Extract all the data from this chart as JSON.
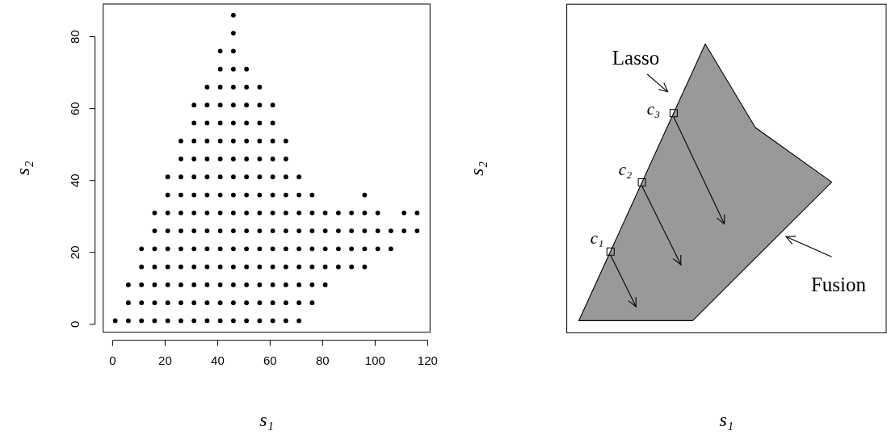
{
  "chart_data": [
    {
      "type": "scatter",
      "xlabel": "s₁",
      "ylabel": "s₂",
      "xlim": [
        -3.6,
        120.9
      ],
      "ylim": [
        -2.2,
        89.1
      ],
      "xticks": [
        0,
        20,
        40,
        60,
        80,
        100,
        120
      ],
      "yticks": [
        0,
        20,
        40,
        60,
        80
      ],
      "marker": "circle",
      "series": [
        {
          "color": "#000000",
          "x": [
            1,
            6,
            11,
            16,
            21,
            26,
            31,
            36,
            41,
            46,
            51,
            56,
            61,
            66,
            71
          ],
          "values": [
            1,
            1,
            1,
            1,
            1,
            1,
            1,
            1,
            1,
            1,
            1,
            1,
            1,
            1,
            1
          ]
        },
        {
          "color": "#000000",
          "x": [
            6,
            11,
            16,
            21,
            26,
            31,
            36,
            41,
            46,
            51,
            56,
            61,
            66,
            71,
            76
          ],
          "values": [
            6,
            6,
            6,
            6,
            6,
            6,
            6,
            6,
            6,
            6,
            6,
            6,
            6,
            6,
            6
          ]
        },
        {
          "color": "#000000",
          "x": [
            6,
            11,
            16,
            21,
            26,
            31,
            36,
            41,
            46,
            51,
            56,
            61,
            66,
            71,
            76,
            81
          ],
          "values": [
            11,
            11,
            11,
            11,
            11,
            11,
            11,
            11,
            11,
            11,
            11,
            11,
            11,
            11,
            11,
            11
          ]
        },
        {
          "color": "#000000",
          "x": [
            11,
            16,
            21,
            26,
            31,
            36,
            41,
            46,
            51,
            56,
            61,
            66,
            71,
            76,
            81,
            86,
            91,
            96
          ],
          "values": [
            16,
            16,
            16,
            16,
            16,
            16,
            16,
            16,
            16,
            16,
            16,
            16,
            16,
            16,
            16,
            16,
            16,
            16
          ]
        },
        {
          "color": "#000000",
          "x": [
            11,
            16,
            21,
            26,
            31,
            36,
            41,
            46,
            51,
            56,
            61,
            66,
            71,
            76,
            81,
            86,
            91,
            96,
            101,
            106
          ],
          "values": [
            21,
            21,
            21,
            21,
            21,
            21,
            21,
            21,
            21,
            21,
            21,
            21,
            21,
            21,
            21,
            21,
            21,
            21,
            21,
            21
          ]
        },
        {
          "color": "#000000",
          "x": [
            16,
            21,
            26,
            31,
            36,
            41,
            46,
            51,
            56,
            61,
            66,
            71,
            76,
            81,
            86,
            91,
            96,
            101,
            106,
            111,
            116
          ],
          "values": [
            26,
            26,
            26,
            26,
            26,
            26,
            26,
            26,
            26,
            26,
            26,
            26,
            26,
            26,
            26,
            26,
            26,
            26,
            26,
            26,
            26
          ]
        },
        {
          "color": "#000000",
          "x": [
            16,
            21,
            26,
            31,
            36,
            41,
            46,
            51,
            56,
            61,
            66,
            71,
            76,
            81,
            86,
            91,
            96,
            101,
            111,
            116
          ],
          "values": [
            31,
            31,
            31,
            31,
            31,
            31,
            31,
            31,
            31,
            31,
            31,
            31,
            31,
            31,
            31,
            31,
            31,
            31,
            31,
            31
          ]
        },
        {
          "color": "#000000",
          "x": [
            21,
            26,
            31,
            36,
            41,
            46,
            51,
            56,
            61,
            66,
            71,
            76,
            96
          ],
          "values": [
            36,
            36,
            36,
            36,
            36,
            36,
            36,
            36,
            36,
            36,
            36,
            36,
            36
          ]
        },
        {
          "color": "#000000",
          "x": [
            21,
            26,
            31,
            36,
            41,
            46,
            51,
            56,
            61,
            66,
            71
          ],
          "values": [
            41,
            41,
            41,
            41,
            41,
            41,
            41,
            41,
            41,
            41,
            41
          ]
        },
        {
          "color": "#000000",
          "x": [
            26,
            31,
            36,
            41,
            46,
            51,
            56,
            61,
            66
          ],
          "values": [
            46,
            46,
            46,
            46,
            46,
            46,
            46,
            46,
            46
          ]
        },
        {
          "color": "#000000",
          "x": [
            26,
            31,
            36,
            41,
            46,
            51,
            56,
            61,
            66
          ],
          "values": [
            51,
            51,
            51,
            51,
            51,
            51,
            51,
            51,
            51
          ]
        },
        {
          "color": "#000000",
          "x": [
            31,
            36,
            41,
            46,
            51,
            56,
            61
          ],
          "values": [
            56,
            56,
            56,
            56,
            56,
            56,
            56
          ]
        },
        {
          "color": "#000000",
          "x": [
            31,
            36,
            41,
            46,
            51,
            56,
            61
          ],
          "values": [
            61,
            61,
            61,
            61,
            61,
            61,
            61
          ]
        },
        {
          "color": "#000000",
          "x": [
            36,
            41,
            46,
            51,
            56
          ],
          "values": [
            66,
            66,
            66,
            66,
            66
          ]
        },
        {
          "color": "#000000",
          "x": [
            41,
            46,
            51
          ],
          "values": [
            71,
            71,
            71
          ]
        },
        {
          "color": "#000000",
          "x": [
            41,
            46
          ],
          "values": [
            76,
            76
          ]
        },
        {
          "color": "#000000",
          "x": [
            46
          ],
          "values": [
            81
          ]
        },
        {
          "color": "#000000",
          "x": [
            46
          ],
          "values": [
            86
          ]
        }
      ]
    },
    {
      "type": "other",
      "xlabel": "s₁",
      "ylabel": "s₂",
      "annotations": [
        "Lasso",
        "Fusion",
        "c₃",
        "c₂",
        "c₁"
      ]
    }
  ]
}
